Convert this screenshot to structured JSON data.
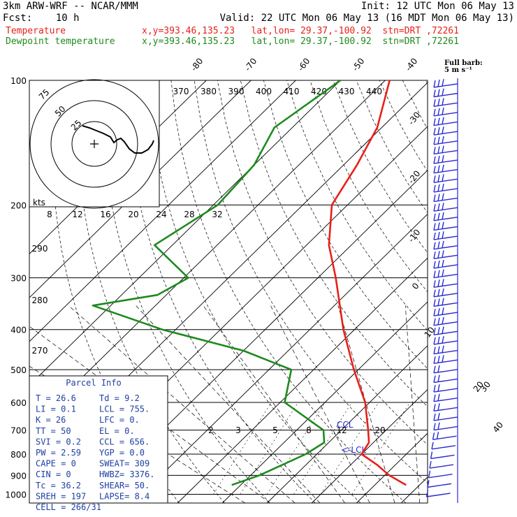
{
  "header": {
    "model": "3km ARW-WRF -- NCAR/MMM",
    "init": "Init: 12 UTC Mon 06 May 13",
    "fcst": "Fcst:    10 h",
    "valid": "Valid: 22 UTC Mon 06 May 13 (16 MDT Mon 06 May 13)",
    "temp_label": "Temperature",
    "dew_label": "Dewpoint temperature",
    "temp_info": "x,y=393.46,135.23   lat,lon= 29.37,-100.92  stn=DRT ,72261",
    "dew_info": "x,y=393.46,135.23   lat,lon= 29.37,-100.92  stn=DRT ,72261"
  },
  "colors": {
    "temperature": "#e8201a",
    "dewpoint": "#1e8a1e",
    "barbs": "#2a2ad0",
    "info": "#1e3fa0"
  },
  "barb_note": "Full barb:\n5 m s⁻¹",
  "chart_data": {
    "type": "line",
    "title": "",
    "pressure_levels_hPa": [
      100,
      200,
      300,
      400,
      500,
      600,
      700,
      800,
      900,
      1000
    ],
    "skewed_isotherm_labels_C": [
      "-80",
      "-70",
      "-60",
      "-50",
      "-40",
      "-30",
      "-20",
      "-10",
      "0",
      "10",
      "20",
      "30",
      "40"
    ],
    "theta_labels_K": [
      "370",
      "380",
      "390",
      "400",
      "410",
      "420",
      "430",
      "440"
    ],
    "dry_adiabat_labels_K": [
      "290",
      "280",
      "270"
    ],
    "mixing_ratio_labels": [
      "2",
      "3",
      "5",
      "8",
      "12",
      "20"
    ],
    "hodograph": {
      "unit_label": "kts",
      "ring_labels": [
        "25",
        "50",
        "75"
      ],
      "axis_labels": [
        "8",
        "12",
        "16",
        "20",
        "24",
        "28",
        "32"
      ]
    },
    "series": [
      {
        "name": "Temperature",
        "points": [
          [
            100,
            -69
          ],
          [
            130,
            -61
          ],
          [
            160,
            -57
          ],
          [
            200,
            -53.5
          ],
          [
            250,
            -45
          ],
          [
            300,
            -36
          ],
          [
            400,
            -22.5
          ],
          [
            500,
            -11
          ],
          [
            600,
            -1
          ],
          [
            700,
            6
          ],
          [
            750,
            9
          ],
          [
            800,
            10
          ],
          [
            850,
            16
          ],
          [
            900,
            21
          ],
          [
            950,
            27
          ]
        ]
      },
      {
        "name": "Dewpoint temperature",
        "points": [
          [
            100,
            -80
          ],
          [
            130,
            -84
          ],
          [
            160,
            -80
          ],
          [
            200,
            -79
          ],
          [
            250,
            -84
          ],
          [
            300,
            -69
          ],
          [
            330,
            -72
          ],
          [
            350,
            -84
          ],
          [
            400,
            -63
          ],
          [
            450,
            -40
          ],
          [
            500,
            -25
          ],
          [
            600,
            -19
          ],
          [
            700,
            -4
          ],
          [
            750,
            -1
          ],
          [
            800,
            -2.5
          ],
          [
            900,
            -8
          ],
          [
            950,
            -12
          ]
        ]
      }
    ],
    "wind_barbs_count": 44,
    "ylim_hPa": [
      1000,
      100
    ]
  },
  "parcel_info": {
    "title": "Parcel Info",
    "rows": [
      [
        "T  =   26.6",
        "Td =    9.2"
      ],
      [
        "LI =    0.1",
        "LCL =  755."
      ],
      [
        "K  =     26",
        "LFC =    0."
      ],
      [
        "TT =     50",
        "EL  =    0."
      ],
      [
        "SVI =   0.2",
        "CCL =  656."
      ],
      [
        "PW =   2.59",
        "YGP =   0.0"
      ],
      [
        "CAPE =    0",
        "SWEAT=  309"
      ],
      [
        "CIN =     0",
        "HWBZ= 3376."
      ],
      [
        "Tc =   36.2",
        "SHEAR=  50."
      ],
      [
        "SREH =  197",
        "LAPSE=  8.4"
      ],
      [
        "CELL = 266/31",
        ""
      ]
    ]
  },
  "annotations": {
    "ccl": "CCL",
    "lcl": "<-LCL"
  }
}
